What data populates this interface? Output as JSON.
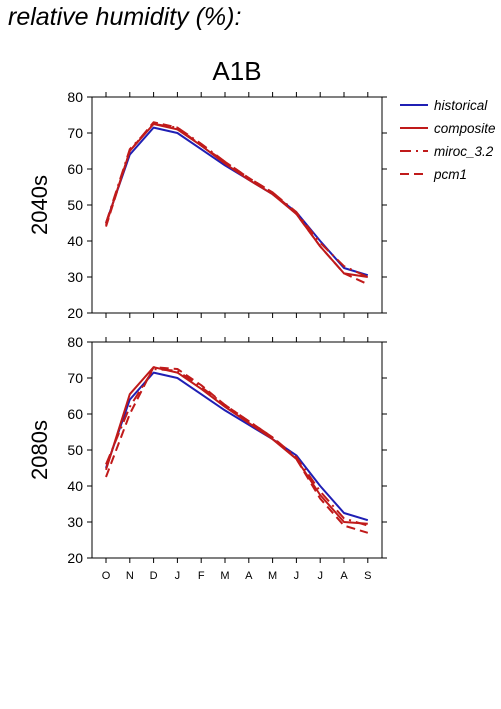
{
  "page": {
    "title": "relative humidity (%):"
  },
  "chart_data": {
    "type": "line",
    "title": "A1B",
    "months": [
      "O",
      "N",
      "D",
      "J",
      "F",
      "M",
      "A",
      "M",
      "J",
      "J",
      "A",
      "S"
    ],
    "ylim": [
      20,
      80
    ],
    "yticks": [
      20,
      30,
      40,
      50,
      60,
      70,
      80
    ],
    "legend": {
      "placement": "right",
      "entries": [
        {
          "key": "historical",
          "label": "historical",
          "color": "#1f1fb4",
          "dash": "solid"
        },
        {
          "key": "composite",
          "label": "composite",
          "color": "#c01a1a",
          "dash": "solid"
        },
        {
          "key": "miroc",
          "label": "miroc_3.2",
          "color": "#c01a1a",
          "dash": "dashdot"
        },
        {
          "key": "pcm1",
          "label": "pcm1",
          "color": "#c01a1a",
          "dash": "dashed"
        }
      ]
    },
    "panels": [
      {
        "label": "2040s",
        "series": [
          {
            "name": "historical",
            "values": [
              45.0,
              64.0,
              71.5,
              70.0,
              65.5,
              61.0,
              57.0,
              53.0,
              48.0,
              40.0,
              32.5,
              30.5
            ]
          },
          {
            "name": "composite",
            "values": [
              44.5,
              65.0,
              72.5,
              71.0,
              66.5,
              61.5,
              57.0,
              53.0,
              47.5,
              38.5,
              31.0,
              30.0
            ]
          },
          {
            "name": "miroc_3.2",
            "values": [
              45.0,
              65.5,
              72.5,
              71.5,
              67.0,
              62.0,
              57.5,
              53.5,
              48.0,
              39.5,
              33.0,
              30.0
            ]
          },
          {
            "name": "pcm1",
            "values": [
              44.0,
              65.0,
              73.0,
              71.5,
              66.5,
              62.0,
              57.5,
              53.5,
              47.5,
              38.5,
              31.0,
              28.0
            ]
          }
        ]
      },
      {
        "label": "2080s",
        "series": [
          {
            "name": "historical",
            "values": [
              45.0,
              64.0,
              71.5,
              70.0,
              65.5,
              61.0,
              57.0,
              53.0,
              48.5,
              40.0,
              32.5,
              30.5
            ]
          },
          {
            "name": "composite",
            "values": [
              44.5,
              65.5,
              73.0,
              71.5,
              67.0,
              62.0,
              57.5,
              53.0,
              47.5,
              37.5,
              30.0,
              29.5
            ]
          },
          {
            "name": "miroc_3.2",
            "values": [
              46.0,
              62.0,
              72.5,
              72.0,
              67.5,
              62.5,
              58.0,
              53.5,
              48.0,
              38.5,
              31.0,
              29.0
            ]
          },
          {
            "name": "pcm1",
            "values": [
              42.5,
              60.0,
              73.0,
              72.5,
              68.0,
              62.5,
              58.0,
              53.5,
              47.5,
              36.5,
              29.0,
              27.0
            ]
          }
        ]
      }
    ]
  }
}
